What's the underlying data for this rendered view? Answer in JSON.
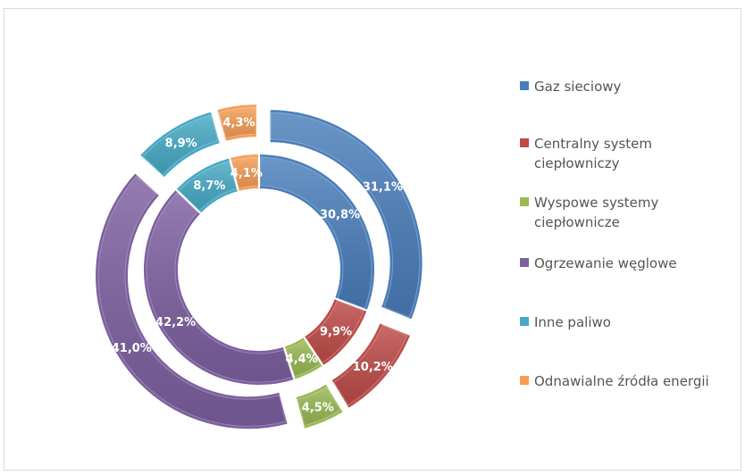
{
  "chart_data": {
    "type": "pie",
    "variant": "doughnut",
    "rings": [
      {
        "ring": "outer",
        "values": [
          31.1,
          10.2,
          4.5,
          41.0,
          8.9,
          4.3
        ],
        "labels": [
          "31,1%",
          "10,2%",
          "4,5%",
          "41,0%",
          "8,9%",
          "4,3%"
        ],
        "exploded": true
      },
      {
        "ring": "inner",
        "values": [
          30.8,
          9.9,
          4.4,
          42.2,
          8.7,
          4.1
        ],
        "labels": [
          "30,8%",
          "9,9%",
          "4,4%",
          "42,2%",
          "8,7%",
          "4,1%"
        ],
        "exploded": false
      }
    ],
    "categories": [
      "Gaz sieciowy",
      "Centralny system ciepłowniczy",
      "Wyspowe systemy ciepłownicze",
      "Ogrzewanie węglowe",
      "Inne paliwo",
      "Odnawialne źródła energii"
    ],
    "colors": [
      "#4a7ebb",
      "#be4b48",
      "#98b954",
      "#7d60a0",
      "#46aac5",
      "#f59d56"
    ],
    "legend_position": "right"
  },
  "legend": {
    "items": [
      {
        "label_line1": "Gaz sieciowy",
        "label_line2": ""
      },
      {
        "label_line1": "Centralny system",
        "label_line2": "ciepłowniczy"
      },
      {
        "label_line1": "Wyspowe systemy",
        "label_line2": "ciepłownicze"
      },
      {
        "label_line1": "Ogrzewanie węglowe",
        "label_line2": ""
      },
      {
        "label_line1": "Inne paliwo",
        "label_line2": ""
      },
      {
        "label_line1": "Odnawialne źródła energii",
        "label_line2": ""
      }
    ]
  }
}
